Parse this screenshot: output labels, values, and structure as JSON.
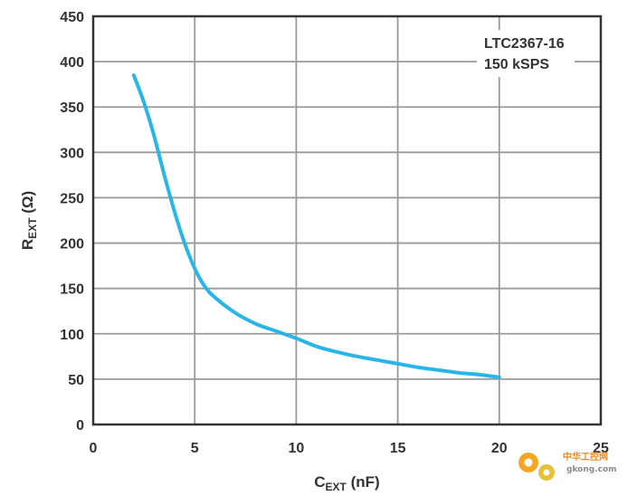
{
  "chart_data": {
    "type": "line",
    "title": "",
    "xlabel": {
      "main": "C",
      "sub": "EXT",
      "unit": " (nF)"
    },
    "ylabel": {
      "main": "R",
      "sub": "EXT",
      "unit": " (Ω)"
    },
    "xlim": [
      0,
      25
    ],
    "ylim": [
      0,
      450
    ],
    "xticks": [
      "0",
      "5",
      "10",
      "15",
      "20",
      "25"
    ],
    "yticks": [
      "0",
      "50",
      "100",
      "150",
      "200",
      "250",
      "300",
      "350",
      "400",
      "450"
    ],
    "grid": true,
    "annotation": [
      "LTC2367-16",
      "150 kSPS"
    ],
    "annotation_position": "top-right",
    "series": [
      {
        "color": "#29b6e6",
        "x": [
          2,
          2.5,
          3,
          3.5,
          4,
          4.5,
          5,
          5.5,
          6,
          7,
          8,
          9,
          10,
          11,
          12,
          13,
          14,
          15,
          16,
          17,
          18,
          19,
          20
        ],
        "y": [
          385,
          355,
          318,
          275,
          235,
          200,
          172,
          152,
          140,
          123,
          111,
          103,
          95,
          86,
          80,
          75,
          71,
          67,
          63,
          60,
          57,
          55,
          52
        ]
      }
    ]
  },
  "watermark": {
    "text": "中华工控网",
    "subtext": "gkong.com",
    "icon": "gear-icon"
  }
}
